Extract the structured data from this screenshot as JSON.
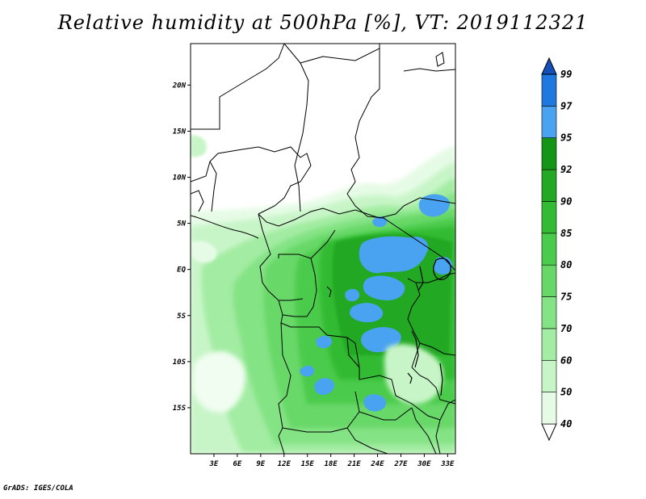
{
  "title": "Relative humidity at 500hPa [%], VT: 2019112321",
  "credit": "GrADS: IGES/COLA",
  "map": {
    "lat_labels": [
      "20N",
      "15N",
      "10N",
      "5N",
      "EQ",
      "5S",
      "10S",
      "15S"
    ],
    "lon_labels": [
      "3E",
      "6E",
      "9E",
      "12E",
      "15E",
      "18E",
      "21E",
      "24E",
      "27E",
      "30E",
      "33E"
    ],
    "lon_range": [
      0,
      34
    ],
    "lat_range": [
      -20,
      24.5
    ]
  },
  "colorbar": {
    "levels": [
      "40",
      "50",
      "60",
      "70",
      "75",
      "80",
      "85",
      "90",
      "92",
      "95",
      "97",
      "99"
    ],
    "colors": [
      "#ffffff",
      "#e6fbe6",
      "#c8f5c8",
      "#a3eca3",
      "#84e384",
      "#67d867",
      "#4bcb4b",
      "#33bb33",
      "#22a822",
      "#159515",
      "#4aa3f0",
      "#1f78e0",
      "#1550b8"
    ]
  }
}
